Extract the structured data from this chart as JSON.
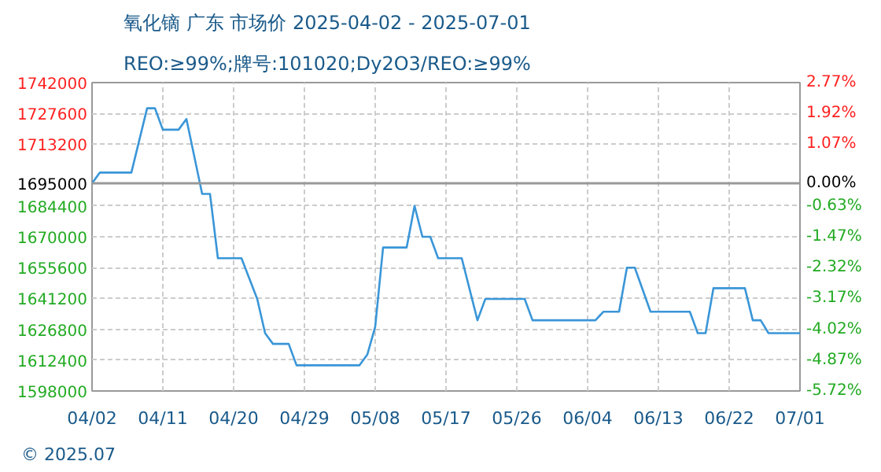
{
  "chart_data": {
    "type": "line",
    "title": "氧化镝 广东 市场价 2025-04-02 - 2025-07-01",
    "subtitle": "REO:≥99%;牌号:101020;Dy2O3/REO:≥99%",
    "x": [
      "2025-04-02",
      "2025-04-03",
      "2025-04-07",
      "2025-04-09",
      "2025-04-10",
      "2025-04-11",
      "2025-04-13",
      "2025-04-14",
      "2025-04-16",
      "2025-04-17",
      "2025-04-18",
      "2025-04-21",
      "2025-04-23",
      "2025-04-24",
      "2025-04-25",
      "2025-04-27",
      "2025-04-28",
      "2025-05-06",
      "2025-05-07",
      "2025-05-08",
      "2025-05-09",
      "2025-05-12",
      "2025-05-13",
      "2025-05-14",
      "2025-05-15",
      "2025-05-16",
      "2025-05-19",
      "2025-05-21",
      "2025-05-22",
      "2025-05-27",
      "2025-05-28",
      "2025-06-05",
      "2025-06-06",
      "2025-06-08",
      "2025-06-09",
      "2025-06-10",
      "2025-06-12",
      "2025-06-17",
      "2025-06-18",
      "2025-06-19",
      "2025-06-20",
      "2025-06-24",
      "2025-06-25",
      "2025-06-26",
      "2025-06-27",
      "2025-07-01"
    ],
    "series": [
      {
        "color": "#3a96d8",
        "values": [
          1695000,
          1700000,
          1700000,
          1730000,
          1730000,
          1720000,
          1720000,
          1725000,
          1690000,
          1690000,
          1660000,
          1660000,
          1641000,
          1625000,
          1620000,
          1620000,
          1610000,
          1610000,
          1615000,
          1628000,
          1665000,
          1665000,
          1684400,
          1670000,
          1670000,
          1660000,
          1660000,
          1631000,
          1641000,
          1641000,
          1631000,
          1631000,
          1635000,
          1635000,
          1655600,
          1655600,
          1635000,
          1635000,
          1625000,
          1625000,
          1646000,
          1646000,
          1631000,
          1631000,
          1625000,
          1625000
        ]
      }
    ],
    "xlim": [
      "2025-04-02",
      "2025-07-01"
    ],
    "xticks": [
      {
        "value": "2025-04-02",
        "label": "04/02"
      },
      {
        "value": "2025-04-11",
        "label": "04/11"
      },
      {
        "value": "2025-04-20",
        "label": "04/20"
      },
      {
        "value": "2025-04-29",
        "label": "04/29"
      },
      {
        "value": "2025-05-08",
        "label": "05/08"
      },
      {
        "value": "2025-05-17",
        "label": "05/17"
      },
      {
        "value": "2025-05-26",
        "label": "05/26"
      },
      {
        "value": "2025-06-04",
        "label": "06/04"
      },
      {
        "value": "2025-06-13",
        "label": "06/13"
      },
      {
        "value": "2025-06-22",
        "label": "06/22"
      },
      {
        "value": "2025-07-01",
        "label": "07/01"
      }
    ],
    "ylim": [
      1598000,
      1742000
    ],
    "yticks": [
      1598000,
      1612400,
      1626800,
      1641200,
      1655600,
      1670000,
      1684400,
      1695000,
      1713200,
      1727600,
      1742000
    ],
    "y2lim": [
      -5.72,
      2.77
    ],
    "y2ticks": [
      {
        "value": -5.72,
        "label": "-5.72%"
      },
      {
        "value": -4.87,
        "label": "-4.87%"
      },
      {
        "value": -4.02,
        "label": "-4.02%"
      },
      {
        "value": -3.17,
        "label": "-3.17%"
      },
      {
        "value": -2.32,
        "label": "-2.32%"
      },
      {
        "value": -1.47,
        "label": "-1.47%"
      },
      {
        "value": -0.63,
        "label": "-0.63%"
      },
      {
        "value": 0,
        "label": "0.00%"
      },
      {
        "value": 1.07,
        "label": "1.07%"
      },
      {
        "value": 1.92,
        "label": "1.92%"
      },
      {
        "value": 2.77,
        "label": "2.77%"
      }
    ],
    "ref_lines": [
      {
        "axis": "y",
        "value": 1695000,
        "color": "#999999"
      }
    ],
    "grid": true,
    "line_style": "solid",
    "marker": "none",
    "annotations": [
      "© 2025.07"
    ]
  }
}
